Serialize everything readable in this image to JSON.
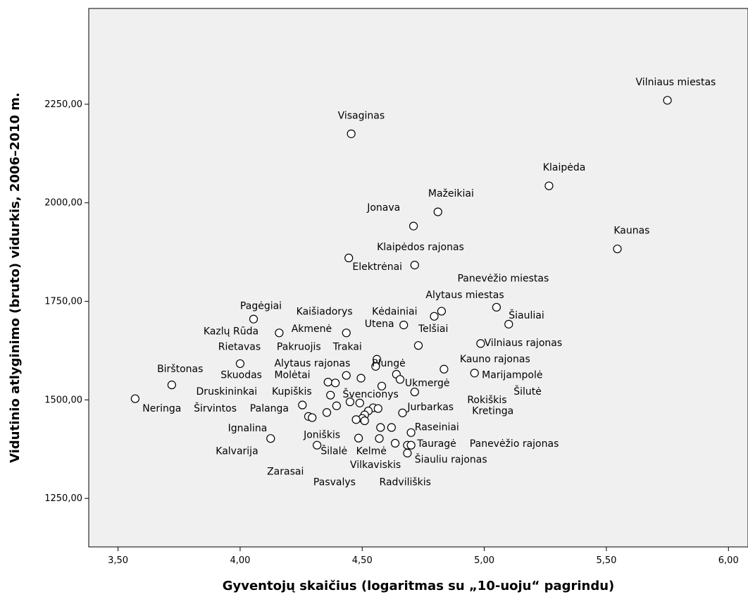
{
  "chart_data": {
    "type": "scatter",
    "title": "",
    "xlabel": "Gyventojų skaičius (logaritmas su „10-uoju“ pagrindu)",
    "ylabel": "Vidutinio atlyginimo (bruto) vidurkis, 2006–2010 m.",
    "xlim": [
      3.38,
      6.08
    ],
    "ylim": [
      1127,
      2493
    ],
    "grid": false,
    "x_ticks": [
      3.5,
      4.0,
      4.5,
      5.0,
      5.5,
      6.0
    ],
    "x_tick_labels": [
      "3,50",
      "4,00",
      "4,50",
      "5,00",
      "5,50",
      "6,00"
    ],
    "y_ticks": [
      1250,
      1500,
      1750,
      2000,
      2250
    ],
    "y_tick_labels": [
      "1250,00",
      "1500,00",
      "1750,00",
      "2000,00",
      "2250,00"
    ],
    "colors": {
      "plot_background": "#f0f0f0",
      "marker_edge": "#000000",
      "marker_fill": "#ffffff"
    },
    "points": [
      {
        "x": 5.75,
        "y": 2260
      },
      {
        "x": 4.455,
        "y": 2175
      },
      {
        "x": 5.265,
        "y": 2043
      },
      {
        "x": 4.81,
        "y": 1977
      },
      {
        "x": 4.71,
        "y": 1941
      },
      {
        "x": 5.545,
        "y": 1883
      },
      {
        "x": 4.445,
        "y": 1860
      },
      {
        "x": 4.715,
        "y": 1842
      },
      {
        "x": 5.05,
        "y": 1735
      },
      {
        "x": 4.825,
        "y": 1725
      },
      {
        "x": 4.795,
        "y": 1712
      },
      {
        "x": 4.055,
        "y": 1705
      },
      {
        "x": 5.1,
        "y": 1692
      },
      {
        "x": 4.67,
        "y": 1690
      },
      {
        "x": 4.16,
        "y": 1670
      },
      {
        "x": 4.435,
        "y": 1670
      },
      {
        "x": 4.985,
        "y": 1643
      },
      {
        "x": 4.73,
        "y": 1638
      },
      {
        "x": 4.0,
        "y": 1592
      },
      {
        "x": 4.56,
        "y": 1603
      },
      {
        "x": 4.555,
        "y": 1585
      },
      {
        "x": 4.835,
        "y": 1578
      },
      {
        "x": 4.96,
        "y": 1568
      },
      {
        "x": 4.64,
        "y": 1565
      },
      {
        "x": 4.435,
        "y": 1562
      },
      {
        "x": 4.495,
        "y": 1555
      },
      {
        "x": 4.655,
        "y": 1552
      },
      {
        "x": 4.36,
        "y": 1545
      },
      {
        "x": 4.39,
        "y": 1543
      },
      {
        "x": 3.72,
        "y": 1538
      },
      {
        "x": 4.58,
        "y": 1535
      },
      {
        "x": 4.715,
        "y": 1520
      },
      {
        "x": 4.37,
        "y": 1512
      },
      {
        "x": 3.57,
        "y": 1503
      },
      {
        "x": 4.45,
        "y": 1495
      },
      {
        "x": 4.49,
        "y": 1492
      },
      {
        "x": 4.255,
        "y": 1487
      },
      {
        "x": 4.395,
        "y": 1485
      },
      {
        "x": 4.545,
        "y": 1480
      },
      {
        "x": 4.565,
        "y": 1478
      },
      {
        "x": 4.525,
        "y": 1472
      },
      {
        "x": 4.355,
        "y": 1468
      },
      {
        "x": 4.665,
        "y": 1467
      },
      {
        "x": 4.51,
        "y": 1462
      },
      {
        "x": 4.28,
        "y": 1458
      },
      {
        "x": 4.295,
        "y": 1455
      },
      {
        "x": 4.5,
        "y": 1453
      },
      {
        "x": 4.475,
        "y": 1450
      },
      {
        "x": 4.51,
        "y": 1447
      },
      {
        "x": 4.575,
        "y": 1430
      },
      {
        "x": 4.62,
        "y": 1430
      },
      {
        "x": 4.7,
        "y": 1417
      },
      {
        "x": 4.125,
        "y": 1402
      },
      {
        "x": 4.485,
        "y": 1403
      },
      {
        "x": 4.57,
        "y": 1402
      },
      {
        "x": 4.315,
        "y": 1385
      },
      {
        "x": 4.635,
        "y": 1390
      },
      {
        "x": 4.685,
        "y": 1385
      },
      {
        "x": 4.7,
        "y": 1385
      },
      {
        "x": 4.685,
        "y": 1365
      }
    ],
    "annotations": [
      {
        "text": "Vilniaus miestas",
        "x": 5.62,
        "y": 2298
      },
      {
        "text": "Visaginas",
        "x": 4.4,
        "y": 2213
      },
      {
        "text": "Klaipėda",
        "x": 5.24,
        "y": 2082
      },
      {
        "text": "Mažeikiai",
        "x": 4.77,
        "y": 2016
      },
      {
        "text": "Jonava",
        "x": 4.52,
        "y": 1980
      },
      {
        "text": "Kaunas",
        "x": 5.53,
        "y": 1922
      },
      {
        "text": "Klaipėdos rajonas",
        "x": 4.56,
        "y": 1880
      },
      {
        "text": "Elektrėnai",
        "x": 4.46,
        "y": 1830
      },
      {
        "text": "Panevėžio miestas",
        "x": 4.89,
        "y": 1800
      },
      {
        "text": "Alytaus miestas",
        "x": 4.76,
        "y": 1758
      },
      {
        "text": "Pagėgiai",
        "x": 4.0,
        "y": 1730
      },
      {
        "text": "Kaišiadorys",
        "x": 4.23,
        "y": 1716
      },
      {
        "text": "Kėdainiai",
        "x": 4.54,
        "y": 1716
      },
      {
        "text": "Šiauliai",
        "x": 5.1,
        "y": 1706
      },
      {
        "text": "Utena",
        "x": 4.51,
        "y": 1685
      },
      {
        "text": "Telšiai",
        "x": 4.73,
        "y": 1672
      },
      {
        "text": "Kazlų Rūda",
        "x": 3.85,
        "y": 1666
      },
      {
        "text": "Akmenė",
        "x": 4.21,
        "y": 1672
      },
      {
        "text": "Vilniaus rajonas",
        "x": 5.0,
        "y": 1637
      },
      {
        "text": "Rietavas",
        "x": 3.91,
        "y": 1627
      },
      {
        "text": "Pakruojis",
        "x": 4.15,
        "y": 1627
      },
      {
        "text": "Trakai",
        "x": 4.38,
        "y": 1627
      },
      {
        "text": "Kauno rajonas",
        "x": 4.9,
        "y": 1595
      },
      {
        "text": "Birštonas",
        "x": 3.66,
        "y": 1570
      },
      {
        "text": "Alytaus rajonas",
        "x": 4.14,
        "y": 1585
      },
      {
        "text": "Plungė",
        "x": 4.54,
        "y": 1585
      },
      {
        "text": "Skuodas",
        "x": 3.92,
        "y": 1555
      },
      {
        "text": "Molėtai",
        "x": 4.14,
        "y": 1555
      },
      {
        "text": "Marijampolė",
        "x": 4.99,
        "y": 1555
      },
      {
        "text": "Ukmergė",
        "x": 4.675,
        "y": 1535
      },
      {
        "text": "Šilutė",
        "x": 5.12,
        "y": 1513
      },
      {
        "text": "Druskininkai",
        "x": 3.82,
        "y": 1513
      },
      {
        "text": "Kupiškis",
        "x": 4.13,
        "y": 1513
      },
      {
        "text": "Švencionys",
        "x": 4.42,
        "y": 1506
      },
      {
        "text": "Rokiškis",
        "x": 4.93,
        "y": 1492
      },
      {
        "text": "Neringa",
        "x": 3.6,
        "y": 1470
      },
      {
        "text": "Širvintos",
        "x": 3.81,
        "y": 1470
      },
      {
        "text": "Palanga",
        "x": 4.04,
        "y": 1470
      },
      {
        "text": "Jurbarkas",
        "x": 4.685,
        "y": 1474
      },
      {
        "text": "Kretinga",
        "x": 4.95,
        "y": 1464
      },
      {
        "text": "Ignalina",
        "x": 3.95,
        "y": 1420
      },
      {
        "text": "Raseiniai",
        "x": 4.715,
        "y": 1423
      },
      {
        "text": "Joniškis",
        "x": 4.26,
        "y": 1403
      },
      {
        "text": "Tauragė",
        "x": 4.725,
        "y": 1381
      },
      {
        "text": "Panevėžio rajonas",
        "x": 4.94,
        "y": 1381
      },
      {
        "text": "Kalvarija",
        "x": 3.9,
        "y": 1362
      },
      {
        "text": "Šilalė",
        "x": 4.33,
        "y": 1362
      },
      {
        "text": "Kelmė",
        "x": 4.475,
        "y": 1362
      },
      {
        "text": "Šiauliu rajonas",
        "x": 4.715,
        "y": 1341
      },
      {
        "text": "Vilkaviskis",
        "x": 4.45,
        "y": 1327
      },
      {
        "text": "Zarasai",
        "x": 4.11,
        "y": 1310
      },
      {
        "text": "Pasvalys",
        "x": 4.3,
        "y": 1283
      },
      {
        "text": "Radviliškis",
        "x": 4.57,
        "y": 1283
      }
    ]
  }
}
